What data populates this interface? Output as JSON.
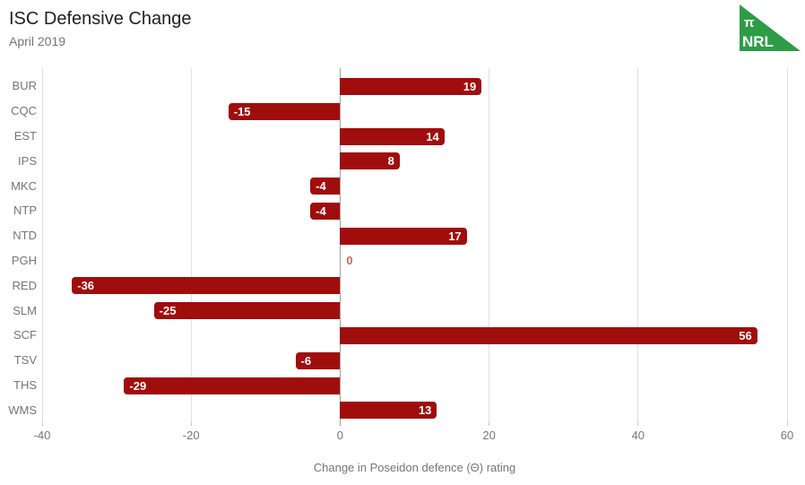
{
  "header": {
    "title": "ISC Defensive Change",
    "subtitle": "April 2019"
  },
  "logo": {
    "line1": "π",
    "line2": "NRL",
    "color": "#2e9c47",
    "text_color": "#ffffff"
  },
  "chart_data": {
    "type": "bar",
    "orientation": "horizontal",
    "title": "ISC Defensive Change",
    "subtitle": "April 2019",
    "categories": [
      "BUR",
      "CQC",
      "EST",
      "IPS",
      "MKC",
      "NTP",
      "NTD",
      "PGH",
      "RED",
      "SLM",
      "SCF",
      "TSV",
      "THS",
      "WMS"
    ],
    "values": [
      19,
      -15,
      14,
      8,
      -4,
      -4,
      17,
      0,
      -36,
      -25,
      56,
      -6,
      -29,
      13
    ],
    "xlabel": "Change in Poseidon defence (Θ) rating",
    "ylabel": "",
    "xlim": [
      -40,
      60
    ],
    "xticks": [
      -40,
      -20,
      0,
      20,
      40,
      60
    ],
    "grid": true,
    "legend": "none",
    "bar_color": "#a00d0d",
    "value_label_color": "#ffffff",
    "zero_value_label_color": "#c26b66",
    "gridline_color": "#e0e0e0",
    "zero_line_color": "#9e9e9e",
    "axis_text_color": "#757575"
  }
}
